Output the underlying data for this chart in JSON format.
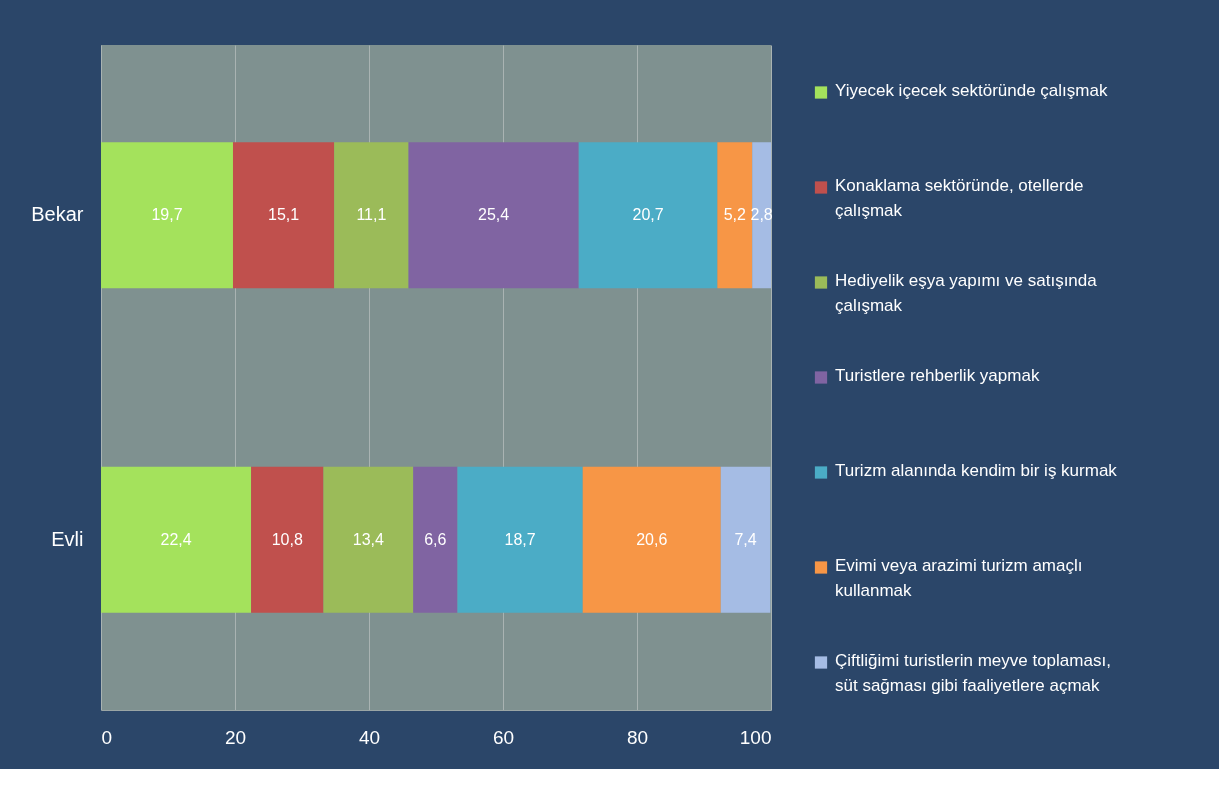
{
  "chart_data": {
    "type": "bar",
    "orientation": "horizontal",
    "stacked": true,
    "categories": [
      "Bekar",
      "Evli"
    ],
    "series": [
      {
        "name": "Yiyecek içecek sektöründe çalışmak",
        "color": "#a4e25c",
        "values": [
          19.7,
          22.4
        ],
        "value_labels": [
          "19,7",
          "22,4"
        ]
      },
      {
        "name": "Konaklama sektöründe, otellerde çalışmak",
        "color": "#c0504d",
        "values": [
          15.1,
          10.8
        ],
        "value_labels": [
          "15,1",
          "10,8"
        ]
      },
      {
        "name": "Hediyelik eşya yapımı ve satışında çalışmak",
        "color": "#9bbb59",
        "values": [
          11.1,
          13.4
        ],
        "value_labels": [
          "11,1",
          "13,4"
        ]
      },
      {
        "name": "Turistlere rehberlik yapmak",
        "color": "#8064a2",
        "values": [
          25.4,
          6.6
        ],
        "value_labels": [
          "25,4",
          "6,6"
        ]
      },
      {
        "name": "Turizm alanında kendim bir iş kurmak",
        "color": "#4bacc6",
        "values": [
          20.7,
          18.7
        ],
        "value_labels": [
          "20,7",
          "18,7"
        ]
      },
      {
        "name": "Evimi veya arazimi turizm amaçlı kullanmak",
        "color": "#f79646",
        "values": [
          5.2,
          20.6
        ],
        "value_labels": [
          "5,2",
          "20,6"
        ]
      },
      {
        "name": "Çiftliğimi turistlerin meyve toplaması, süt sağması gibi faaliyetlere açmak",
        "color": "#a5bce4",
        "values": [
          2.8,
          7.4
        ],
        "value_labels": [
          "2,8",
          "7,4"
        ]
      }
    ],
    "xlim": [
      0,
      100
    ],
    "xticks": [
      0,
      20,
      40,
      60,
      80,
      100
    ],
    "grid": "x",
    "legend": "right"
  }
}
